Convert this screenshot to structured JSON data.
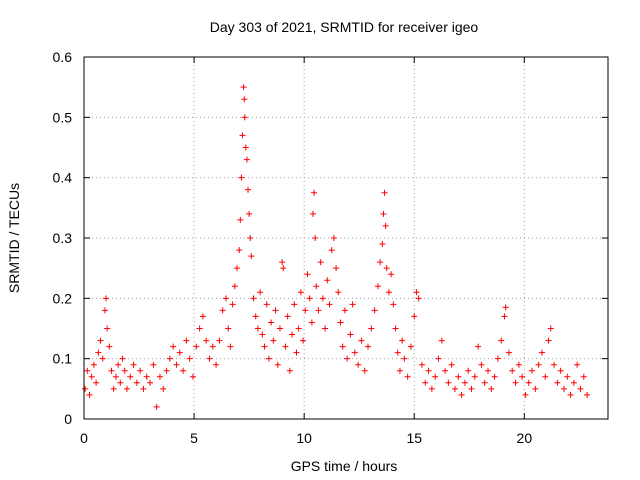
{
  "chart_data": {
    "type": "scatter",
    "title": "Day 303 of 2021, SRMTID for receiver igeo",
    "xlabel": "GPS time / hours",
    "ylabel": "SRMTID / TECUs",
    "xlim": [
      0,
      23.8
    ],
    "ylim": [
      0,
      0.6
    ],
    "xticks": [
      0,
      5,
      10,
      15,
      20
    ],
    "xtick_labels": [
      "0",
      "5",
      "10",
      "15",
      "20"
    ],
    "yticks": [
      0,
      0.1,
      0.2,
      0.3,
      0.4,
      0.5,
      0.6
    ],
    "ytick_labels": [
      "0",
      "0.1",
      "0.2",
      "0.3",
      "0.4",
      "0.5",
      "0.6"
    ],
    "grid": true,
    "marker": "+",
    "color": "#ff0000",
    "series": [
      {
        "name": "SRMTID",
        "points": [
          [
            0.05,
            0.05
          ],
          [
            0.15,
            0.08
          ],
          [
            0.25,
            0.04
          ],
          [
            0.35,
            0.07
          ],
          [
            0.45,
            0.09
          ],
          [
            0.55,
            0.06
          ],
          [
            0.65,
            0.11
          ],
          [
            0.75,
            0.13
          ],
          [
            0.85,
            0.1
          ],
          [
            0.95,
            0.18
          ],
          [
            1.0,
            0.2
          ],
          [
            1.05,
            0.15
          ],
          [
            1.15,
            0.12
          ],
          [
            1.25,
            0.08
          ],
          [
            1.35,
            0.05
          ],
          [
            1.45,
            0.07
          ],
          [
            1.55,
            0.09
          ],
          [
            1.65,
            0.06
          ],
          [
            1.75,
            0.1
          ],
          [
            1.85,
            0.08
          ],
          [
            1.95,
            0.05
          ],
          [
            2.1,
            0.07
          ],
          [
            2.25,
            0.09
          ],
          [
            2.4,
            0.06
          ],
          [
            2.55,
            0.08
          ],
          [
            2.7,
            0.05
          ],
          [
            2.85,
            0.07
          ],
          [
            3.0,
            0.06
          ],
          [
            3.15,
            0.09
          ],
          [
            3.3,
            0.02
          ],
          [
            3.45,
            0.07
          ],
          [
            3.6,
            0.05
          ],
          [
            3.75,
            0.08
          ],
          [
            3.9,
            0.1
          ],
          [
            4.05,
            0.12
          ],
          [
            4.2,
            0.09
          ],
          [
            4.35,
            0.11
          ],
          [
            4.5,
            0.08
          ],
          [
            4.65,
            0.13
          ],
          [
            4.8,
            0.1
          ],
          [
            4.95,
            0.07
          ],
          [
            5.1,
            0.12
          ],
          [
            5.25,
            0.15
          ],
          [
            5.4,
            0.17
          ],
          [
            5.55,
            0.13
          ],
          [
            5.7,
            0.1
          ],
          [
            5.85,
            0.12
          ],
          [
            6.0,
            0.09
          ],
          [
            6.15,
            0.13
          ],
          [
            6.3,
            0.18
          ],
          [
            6.45,
            0.2
          ],
          [
            6.55,
            0.15
          ],
          [
            6.65,
            0.12
          ],
          [
            6.75,
            0.19
          ],
          [
            6.85,
            0.22
          ],
          [
            6.95,
            0.25
          ],
          [
            7.05,
            0.28
          ],
          [
            7.1,
            0.33
          ],
          [
            7.15,
            0.4
          ],
          [
            7.2,
            0.47
          ],
          [
            7.25,
            0.55
          ],
          [
            7.28,
            0.53
          ],
          [
            7.3,
            0.5
          ],
          [
            7.35,
            0.45
          ],
          [
            7.4,
            0.43
          ],
          [
            7.45,
            0.38
          ],
          [
            7.5,
            0.34
          ],
          [
            7.55,
            0.3
          ],
          [
            7.6,
            0.27
          ],
          [
            7.7,
            0.2
          ],
          [
            7.8,
            0.17
          ],
          [
            7.9,
            0.15
          ],
          [
            8.0,
            0.21
          ],
          [
            8.1,
            0.14
          ],
          [
            8.2,
            0.12
          ],
          [
            8.3,
            0.19
          ],
          [
            8.4,
            0.1
          ],
          [
            8.5,
            0.16
          ],
          [
            8.6,
            0.13
          ],
          [
            8.7,
            0.18
          ],
          [
            8.8,
            0.09
          ],
          [
            8.9,
            0.15
          ],
          [
            9.0,
            0.26
          ],
          [
            9.05,
            0.25
          ],
          [
            9.15,
            0.12
          ],
          [
            9.25,
            0.17
          ],
          [
            9.35,
            0.08
          ],
          [
            9.45,
            0.14
          ],
          [
            9.55,
            0.19
          ],
          [
            9.65,
            0.11
          ],
          [
            9.75,
            0.15
          ],
          [
            9.85,
            0.21
          ],
          [
            9.95,
            0.13
          ],
          [
            10.05,
            0.18
          ],
          [
            10.15,
            0.24
          ],
          [
            10.25,
            0.2
          ],
          [
            10.35,
            0.16
          ],
          [
            10.4,
            0.34
          ],
          [
            10.45,
            0.375
          ],
          [
            10.5,
            0.3
          ],
          [
            10.55,
            0.22
          ],
          [
            10.65,
            0.18
          ],
          [
            10.75,
            0.26
          ],
          [
            10.85,
            0.2
          ],
          [
            10.95,
            0.15
          ],
          [
            11.05,
            0.23
          ],
          [
            11.15,
            0.19
          ],
          [
            11.25,
            0.28
          ],
          [
            11.35,
            0.3
          ],
          [
            11.45,
            0.25
          ],
          [
            11.55,
            0.21
          ],
          [
            11.65,
            0.16
          ],
          [
            11.75,
            0.12
          ],
          [
            11.85,
            0.18
          ],
          [
            11.95,
            0.1
          ],
          [
            12.1,
            0.14
          ],
          [
            12.2,
            0.19
          ],
          [
            12.3,
            0.11
          ],
          [
            12.45,
            0.09
          ],
          [
            12.6,
            0.13
          ],
          [
            12.75,
            0.08
          ],
          [
            12.9,
            0.12
          ],
          [
            13.05,
            0.15
          ],
          [
            13.2,
            0.18
          ],
          [
            13.35,
            0.22
          ],
          [
            13.45,
            0.26
          ],
          [
            13.55,
            0.29
          ],
          [
            13.6,
            0.34
          ],
          [
            13.65,
            0.375
          ],
          [
            13.7,
            0.32
          ],
          [
            13.75,
            0.25
          ],
          [
            13.85,
            0.21
          ],
          [
            13.95,
            0.24
          ],
          [
            14.05,
            0.19
          ],
          [
            14.15,
            0.15
          ],
          [
            14.25,
            0.11
          ],
          [
            14.35,
            0.08
          ],
          [
            14.45,
            0.13
          ],
          [
            14.55,
            0.1
          ],
          [
            14.7,
            0.07
          ],
          [
            14.85,
            0.12
          ],
          [
            15.0,
            0.17
          ],
          [
            15.1,
            0.21
          ],
          [
            15.2,
            0.2
          ],
          [
            15.35,
            0.09
          ],
          [
            15.5,
            0.06
          ],
          [
            15.65,
            0.08
          ],
          [
            15.8,
            0.05
          ],
          [
            15.95,
            0.07
          ],
          [
            16.1,
            0.1
          ],
          [
            16.25,
            0.13
          ],
          [
            16.4,
            0.08
          ],
          [
            16.55,
            0.06
          ],
          [
            16.7,
            0.09
          ],
          [
            16.85,
            0.05
          ],
          [
            17.0,
            0.07
          ],
          [
            17.15,
            0.04
          ],
          [
            17.3,
            0.06
          ],
          [
            17.45,
            0.08
          ],
          [
            17.6,
            0.05
          ],
          [
            17.75,
            0.07
          ],
          [
            17.9,
            0.12
          ],
          [
            18.05,
            0.09
          ],
          [
            18.2,
            0.06
          ],
          [
            18.35,
            0.08
          ],
          [
            18.5,
            0.05
          ],
          [
            18.65,
            0.07
          ],
          [
            18.8,
            0.1
          ],
          [
            18.95,
            0.13
          ],
          [
            19.1,
            0.17
          ],
          [
            19.15,
            0.185
          ],
          [
            19.3,
            0.11
          ],
          [
            19.45,
            0.08
          ],
          [
            19.6,
            0.06
          ],
          [
            19.75,
            0.09
          ],
          [
            19.9,
            0.07
          ],
          [
            20.05,
            0.04
          ],
          [
            20.2,
            0.06
          ],
          [
            20.35,
            0.08
          ],
          [
            20.5,
            0.05
          ],
          [
            20.65,
            0.09
          ],
          [
            20.8,
            0.11
          ],
          [
            20.95,
            0.07
          ],
          [
            21.1,
            0.13
          ],
          [
            21.2,
            0.15
          ],
          [
            21.35,
            0.09
          ],
          [
            21.5,
            0.06
          ],
          [
            21.65,
            0.08
          ],
          [
            21.8,
            0.05
          ],
          [
            21.95,
            0.07
          ],
          [
            22.1,
            0.04
          ],
          [
            22.25,
            0.06
          ],
          [
            22.4,
            0.09
          ],
          [
            22.55,
            0.05
          ],
          [
            22.7,
            0.07
          ],
          [
            22.85,
            0.04
          ]
        ]
      }
    ]
  }
}
